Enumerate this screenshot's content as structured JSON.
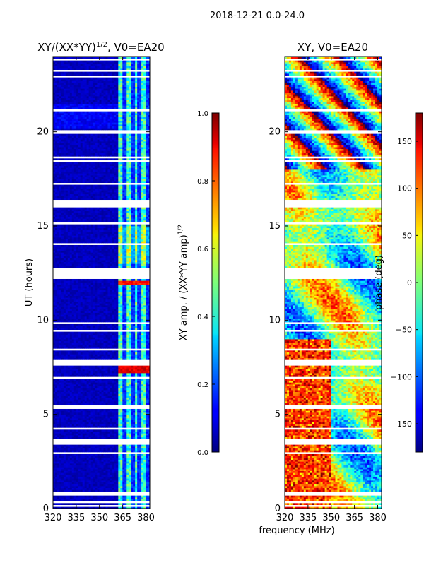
{
  "figure_title": "2018-12-21 0.0-24.0",
  "chart_data": [
    {
      "type": "heatmap",
      "title_main": "XY/(XX*YY)",
      "title_sup": "1/2",
      "title_tail": ", V0=EA20",
      "ylabel": "UT (hours)",
      "xlim": [
        320,
        382.5
      ],
      "ylim": [
        0,
        24
      ],
      "xticks": [
        320,
        335,
        350,
        365,
        380
      ],
      "yticks": [
        0,
        5,
        10,
        15,
        20
      ],
      "grid": false,
      "colormap": "jet",
      "colorbar": {
        "label_main": "XY amp. / (XX*YY amp)",
        "label_sup": "1/2",
        "range": [
          0.0,
          1.0
        ],
        "ticks": [
          0.0,
          0.2,
          0.4,
          0.6,
          0.8,
          1.0
        ],
        "tick_labels": [
          "0.0",
          "0.2",
          "0.4",
          "0.6",
          "0.8",
          "1.0"
        ]
      }
    },
    {
      "type": "heatmap",
      "title": "XY, V0=EA20",
      "xlabel": "frequency (MHz)",
      "xlim": [
        320,
        382.5
      ],
      "ylim": [
        0,
        24
      ],
      "xticks": [
        320,
        335,
        350,
        365,
        380
      ],
      "yticks": [
        0,
        5,
        10,
        15,
        20
      ],
      "grid": false,
      "colormap": "jet",
      "colorbar": {
        "label": "phase (deg)",
        "range": [
          -180,
          180
        ],
        "ticks": [
          -150,
          -100,
          -50,
          0,
          50,
          100,
          150
        ],
        "tick_labels": [
          "−150",
          "−100",
          "−50",
          "0",
          "50",
          "100",
          "150"
        ]
      }
    }
  ]
}
